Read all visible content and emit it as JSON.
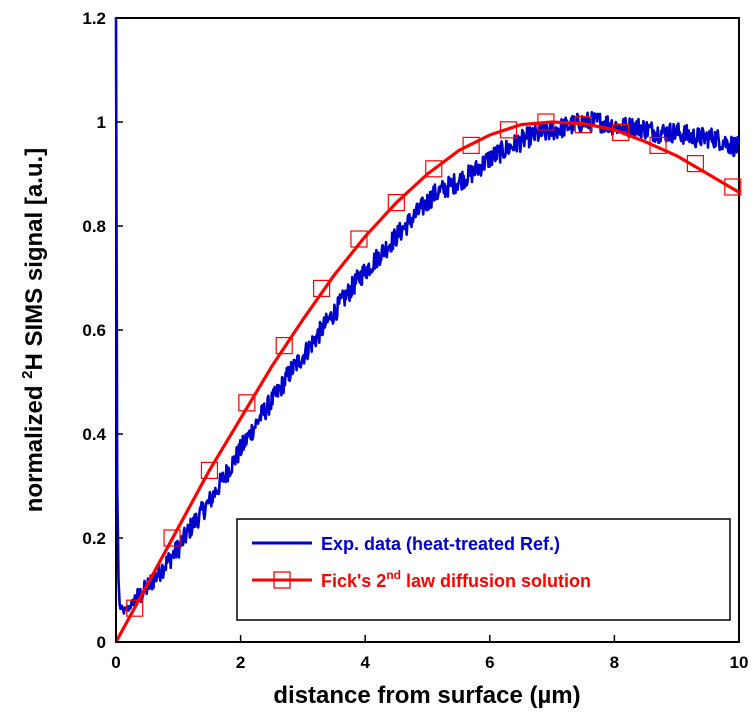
{
  "chart_data": {
    "type": "line",
    "xlabel": "distance from surface (µm)",
    "ylabel_parts": {
      "pre": "normalized ",
      "sup": "2",
      "post": "H SIMS signal [a.u.]"
    },
    "xlim": [
      0,
      10
    ],
    "ylim": [
      0,
      1.2
    ],
    "xticks": [
      0,
      2,
      4,
      6,
      8,
      10
    ],
    "yticks": [
      0,
      0.2,
      0.4,
      0.6,
      0.8,
      1,
      1.2
    ],
    "xtick_labels": [
      "0",
      "2",
      "4",
      "6",
      "8",
      "10"
    ],
    "ytick_labels": [
      "0",
      "0.2",
      "0.4",
      "0.6",
      "0.8",
      "1",
      "1.2"
    ],
    "grid": false,
    "legend_placement": "bottom-right",
    "series": [
      {
        "name": "Exp. data (heat-treated Ref.)",
        "color": "#0000CC",
        "style": "noisy line",
        "x": [
          0.0,
          0.01,
          0.02,
          0.04,
          0.06,
          0.1,
          0.15,
          0.2,
          0.3,
          0.4,
          0.5,
          0.6,
          0.8,
          1.0,
          1.2,
          1.5,
          1.8,
          2.0,
          2.3,
          2.6,
          2.8,
          3.0,
          3.3,
          3.6,
          3.9,
          4.2,
          4.5,
          4.8,
          5.1,
          5.4,
          5.7,
          6.0,
          6.3,
          6.6,
          6.9,
          7.2,
          7.5,
          7.8,
          8.1,
          8.4,
          8.7,
          9.0,
          9.3,
          9.6,
          9.8,
          10.0
        ],
        "y": [
          1.2,
          0.75,
          0.3,
          0.12,
          0.07,
          0.06,
          0.06,
          0.065,
          0.08,
          0.09,
          0.105,
          0.12,
          0.15,
          0.18,
          0.22,
          0.27,
          0.33,
          0.37,
          0.43,
          0.48,
          0.52,
          0.55,
          0.6,
          0.65,
          0.7,
          0.74,
          0.78,
          0.82,
          0.86,
          0.88,
          0.9,
          0.93,
          0.95,
          0.97,
          0.98,
          0.99,
          1.0,
          1.0,
          0.99,
          0.99,
          0.98,
          0.98,
          0.97,
          0.97,
          0.96,
          0.95
        ],
        "noise_amplitude": 0.02
      },
      {
        "name_parts": {
          "pre": "Fick's 2",
          "sup": "nd",
          "post": " law diffusion solution"
        },
        "color": "#FF0000",
        "style": "smooth line with square markers",
        "x": [
          0.0,
          0.5,
          1.0,
          1.5,
          2.0,
          2.5,
          3.0,
          3.5,
          4.0,
          4.5,
          5.0,
          5.5,
          6.0,
          6.5,
          7.0,
          7.5,
          8.0,
          8.5,
          9.0,
          9.5,
          10.0
        ],
        "y": [
          0.0,
          0.11,
          0.22,
          0.33,
          0.43,
          0.53,
          0.62,
          0.705,
          0.78,
          0.845,
          0.9,
          0.945,
          0.975,
          0.995,
          1.0,
          0.997,
          0.985,
          0.962,
          0.935,
          0.9,
          0.865
        ],
        "marker_x": [
          0.3,
          0.9,
          1.5,
          2.1,
          2.7,
          3.3,
          3.9,
          4.5,
          5.1,
          5.7,
          6.3,
          6.9,
          7.5,
          8.1,
          8.7,
          9.3,
          9.9
        ],
        "marker_y": [
          0.065,
          0.2,
          0.33,
          0.46,
          0.57,
          0.68,
          0.775,
          0.845,
          0.91,
          0.955,
          0.985,
          1.0,
          0.995,
          0.98,
          0.955,
          0.92,
          0.875
        ]
      }
    ]
  }
}
